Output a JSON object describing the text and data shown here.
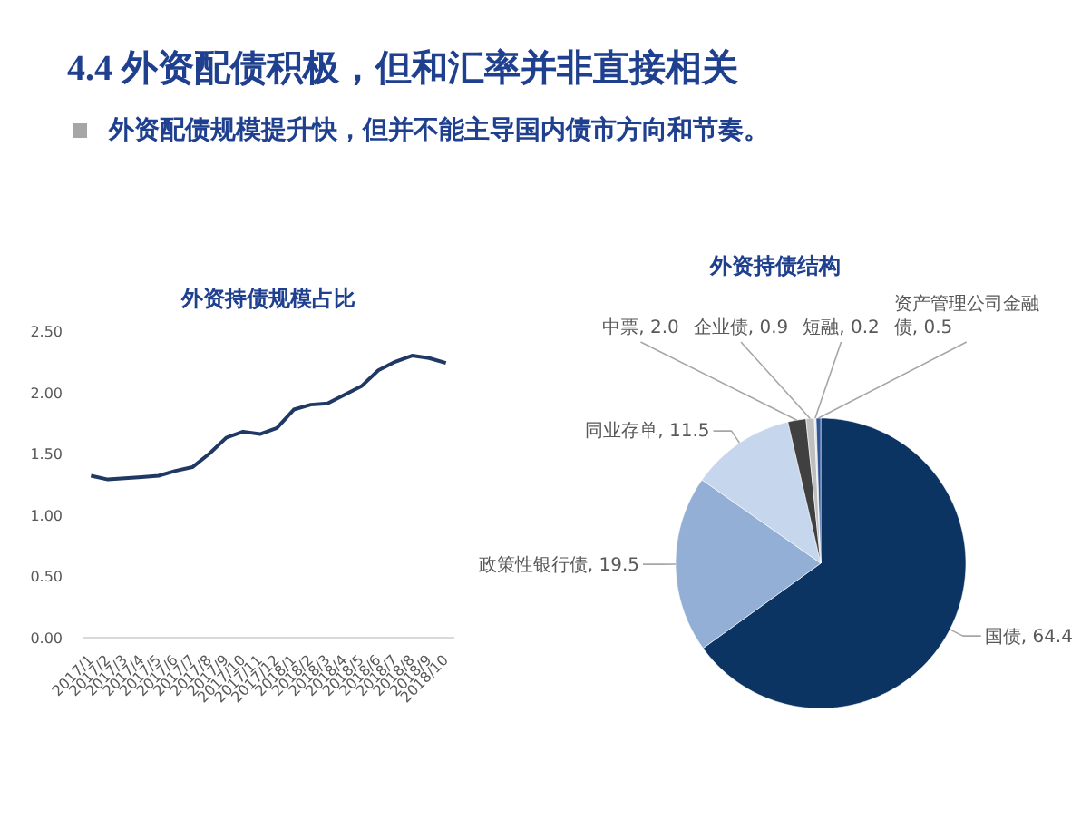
{
  "chart_data": [
    {
      "type": "line",
      "title": "外资持债规模占比",
      "annotations": [
        "4.4 外资配债积极，但和汇率并非直接相关",
        "外资配债规模提升快，但并不能主导国内债市方向和节奏。"
      ],
      "categories": [
        "2017/1",
        "2017/2",
        "2017/3",
        "2017/4",
        "2017/5",
        "2017/6",
        "2017/7",
        "2017/8",
        "2017/9",
        "2017/10",
        "2017/11",
        "2017/12",
        "2018/1",
        "2018/2",
        "2018/3",
        "2018/4",
        "2018/5",
        "2018/6",
        "2018/7",
        "2018/8",
        "2018/9",
        "2018/10"
      ],
      "series": [
        {
          "color": "#1f3864",
          "values": [
            1.32,
            1.29,
            1.3,
            1.31,
            1.32,
            1.36,
            1.39,
            1.5,
            1.63,
            1.68,
            1.66,
            1.71,
            1.86,
            1.9,
            1.91,
            1.98,
            2.05,
            2.18,
            2.25,
            2.3,
            2.28,
            2.24
          ]
        }
      ],
      "ylim": [
        0,
        2.5
      ],
      "yticks": [
        {
          "value": 0,
          "label": "0.00"
        },
        {
          "value": 0.5,
          "label": "0.50"
        },
        {
          "value": 1,
          "label": "1.00"
        },
        {
          "value": 1.5,
          "label": "1.50"
        },
        {
          "value": 2,
          "label": "2.00"
        },
        {
          "value": 2.5,
          "label": "2.50"
        }
      ],
      "line_style": "solid"
    },
    {
      "type": "pie",
      "title": "外资持债结构",
      "categories": [
        "国债",
        "政策性银行债",
        "同业存单",
        "中票",
        "企业债",
        "短融",
        "资产管理公司金融债"
      ],
      "values": [
        64.4,
        19.5,
        11.5,
        2.0,
        0.9,
        0.2,
        0.5
      ],
      "colors": [
        "#0b3463",
        "#93afd6",
        "#c6d6ec",
        "#404040",
        "#bfbfbf",
        "#e2e2e2",
        "#2f5597"
      ],
      "value_labels": [
        ", 64.4",
        ", 19.5",
        ", 11.5",
        ", 2.0",
        ", 0.9",
        ", 0.2",
        ", 0.5"
      ]
    }
  ]
}
